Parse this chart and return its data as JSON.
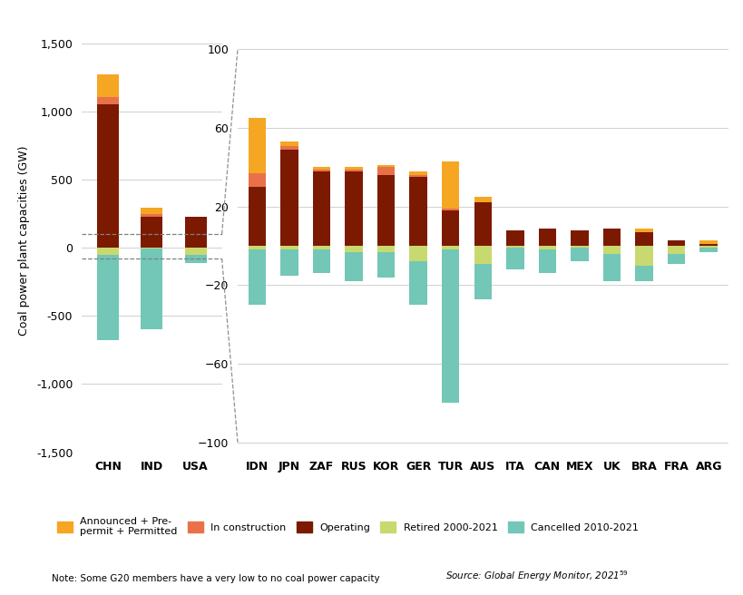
{
  "colors": {
    "announced": "#F5A623",
    "construction": "#E8714A",
    "operating": "#7B1A00",
    "retired": "#C8D96F",
    "cancelled": "#72C7B6"
  },
  "left_panel": {
    "countries": [
      "CHN",
      "IND",
      "USA"
    ],
    "announced": [
      170,
      50,
      0
    ],
    "construction": [
      55,
      15,
      0
    ],
    "operating": [
      1050,
      230,
      230
    ],
    "retired": [
      -50,
      -5,
      -55
    ],
    "cancelled": [
      -630,
      -590,
      -60
    ]
  },
  "right_panel": {
    "countries": [
      "IDN",
      "JPN",
      "ZAF",
      "RUS",
      "KOR",
      "GER",
      "TUR",
      "AUS",
      "ITA",
      "CAN",
      "MEX",
      "UK",
      "BRA",
      "FRA",
      "ARG"
    ],
    "announced": [
      28,
      2,
      1,
      1,
      1,
      2,
      24,
      3,
      0,
      0,
      0,
      0,
      2,
      0,
      2
    ],
    "construction": [
      7,
      2,
      1,
      1,
      4,
      1,
      1,
      0,
      0,
      0,
      0,
      0,
      0,
      0,
      0
    ],
    "operating": [
      30,
      49,
      38,
      38,
      36,
      35,
      18,
      22,
      8,
      9,
      8,
      9,
      7,
      3,
      1
    ],
    "retired": [
      -2,
      -2,
      -2,
      -3,
      -3,
      -8,
      -2,
      -9,
      -1,
      -2,
      -1,
      -4,
      -10,
      -4,
      -1
    ],
    "cancelled": [
      -28,
      -13,
      -12,
      -15,
      -13,
      -22,
      -78,
      -18,
      -11,
      -12,
      -7,
      -14,
      -8,
      -5,
      -2
    ]
  },
  "left_ylim": [
    -1500,
    1600
  ],
  "left_yticks": [
    -1500,
    -1000,
    -500,
    0,
    500,
    1000,
    1500
  ],
  "right_ylim": [
    -105,
    110
  ],
  "right_yticks": [
    -100,
    -60,
    -20,
    20,
    60,
    100
  ],
  "ylabel": "Coal power plant capacities (GW)",
  "note": "Note: Some G20 members have a very low to no coal power capacity",
  "source": "Source: Global Energy Monitor, 2021",
  "legend_labels": [
    "Announced + Pre-\npermit + Permitted",
    "In construction",
    "Operating",
    "Retired 2000-2021",
    "Cancelled 2010-2021"
  ]
}
